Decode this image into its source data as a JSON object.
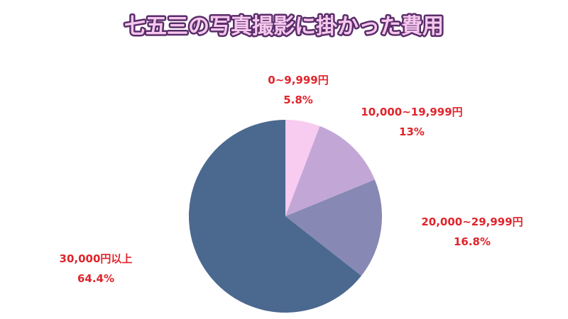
{
  "chart_data": {
    "type": "pie",
    "title": "七五三の写真撮影に掛かった費用",
    "categories": [
      "0~9,999円",
      "10,000~19,999円",
      "20,000~29,999円",
      "30,000円以上"
    ],
    "values": [
      5.8,
      13,
      16.8,
      64.4
    ],
    "value_labels": [
      "5.8%",
      "13%",
      "16.8%",
      "64.4%"
    ],
    "colors": [
      "#f8cbf0",
      "#c2a7d6",
      "#8789b4",
      "#4b688f"
    ]
  }
}
